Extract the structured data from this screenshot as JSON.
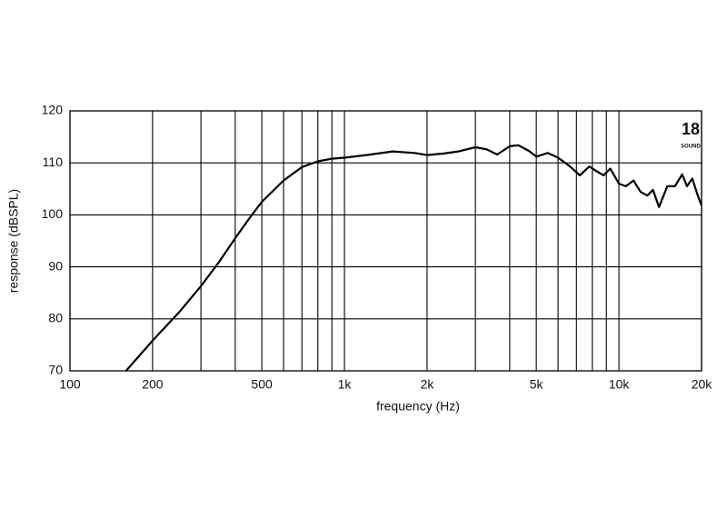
{
  "chart_data": {
    "type": "line",
    "xlabel": "frequency (Hz)",
    "ylabel": "response (dBSPL)",
    "logo": "18",
    "logo_subtext": "SOUND",
    "xscale": "log",
    "grid": true,
    "xlim": [
      100,
      20000
    ],
    "ylim": [
      70,
      120
    ],
    "xticks": [
      100,
      200,
      500,
      {
        "value": 1000,
        "label": "1k"
      },
      {
        "value": 2000,
        "label": "2k"
      },
      {
        "value": 5000,
        "label": "5k"
      },
      {
        "value": 10000,
        "label": "10k"
      },
      {
        "value": 20000,
        "label": "20k"
      }
    ],
    "x_minor_ticks": [
      300,
      400,
      600,
      700,
      800,
      900,
      3000,
      4000,
      6000,
      7000,
      8000,
      9000
    ],
    "yticks": [
      70,
      80,
      90,
      100,
      110,
      120
    ],
    "series": [
      {
        "color": "#000000",
        "x": [
          160,
          200,
          250,
          300,
          350,
          400,
          450,
          500,
          600,
          700,
          800,
          900,
          1000,
          1200,
          1500,
          1800,
          2000,
          2300,
          2600,
          3000,
          3300,
          3600,
          4000,
          4300,
          4700,
          5000,
          5500,
          6000,
          6600,
          7200,
          7800,
          8300,
          8800,
          9300,
          10000,
          10600,
          11300,
          12000,
          12700,
          13300,
          14000,
          15000,
          16000,
          17000,
          17700,
          18500,
          19300,
          20000
        ],
        "values": [
          70,
          75.8,
          81.3,
          86.3,
          91,
          95.5,
          99.3,
          102.5,
          106.6,
          109.2,
          110.3,
          110.8,
          111.0,
          111.5,
          112.2,
          111.9,
          111.5,
          111.8,
          112.2,
          113,
          112.6,
          111.6,
          113.2,
          113.4,
          112.3,
          111.2,
          111.9,
          111,
          109.4,
          107.6,
          109.3,
          108.4,
          107.6,
          108.9,
          106,
          105.5,
          106.6,
          104.4,
          103.7,
          104.8,
          101.5,
          105.5,
          105.5,
          107.8,
          105.5,
          107,
          104,
          101.8
        ]
      }
    ]
  }
}
